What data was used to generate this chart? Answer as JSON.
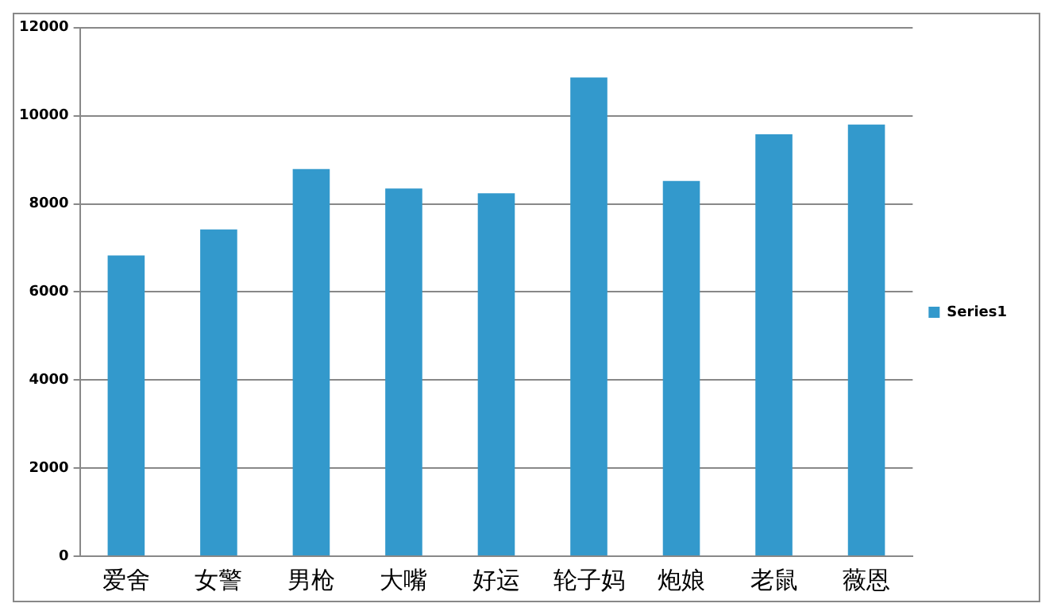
{
  "chart_data": {
    "type": "bar",
    "categories": [
      "爱舍",
      "女警",
      "男枪",
      "大嘴",
      "好运",
      "轮子妈",
      "炮娘",
      "老鼠",
      "薇恩"
    ],
    "series": [
      {
        "name": "Series1",
        "color": "#3399cc",
        "values": [
          6830,
          7420,
          8790,
          8350,
          8240,
          10870,
          8520,
          9580,
          9800
        ]
      }
    ],
    "ylim": [
      0,
      12000
    ],
    "yticks": [
      0,
      2000,
      4000,
      6000,
      8000,
      10000,
      12000
    ],
    "grid": "y",
    "legend": "right"
  }
}
